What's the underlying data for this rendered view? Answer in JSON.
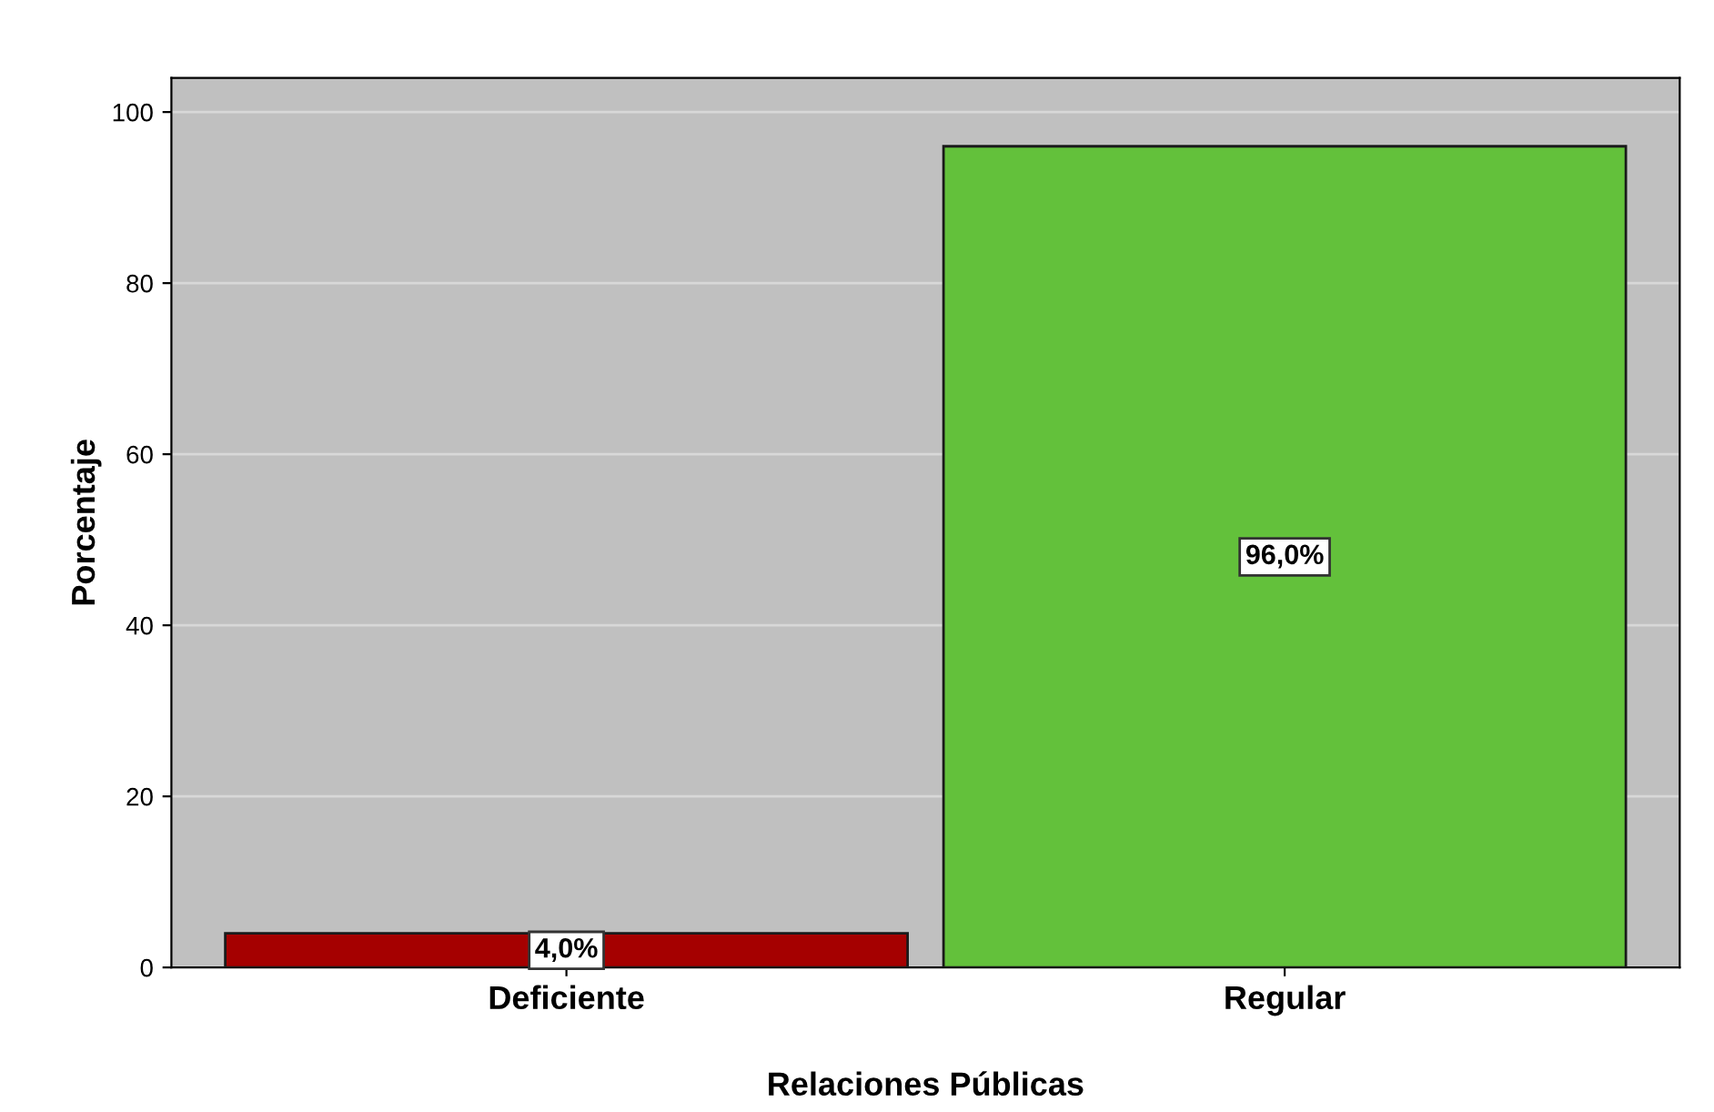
{
  "chart_data": {
    "type": "bar",
    "xlabel": "Relaciones Públicas",
    "ylabel": "Porcentaje",
    "categories": [
      "Deficiente",
      "Regular"
    ],
    "values": [
      4.0,
      96.0
    ],
    "colors": [
      "#a50000",
      "#63c13b"
    ],
    "value_labels": [
      "4,0%",
      "96,0%"
    ],
    "ylim": [
      0,
      104
    ],
    "yticks": [
      0,
      20,
      40,
      60,
      80,
      100
    ],
    "grid": "y",
    "legend": false
  }
}
